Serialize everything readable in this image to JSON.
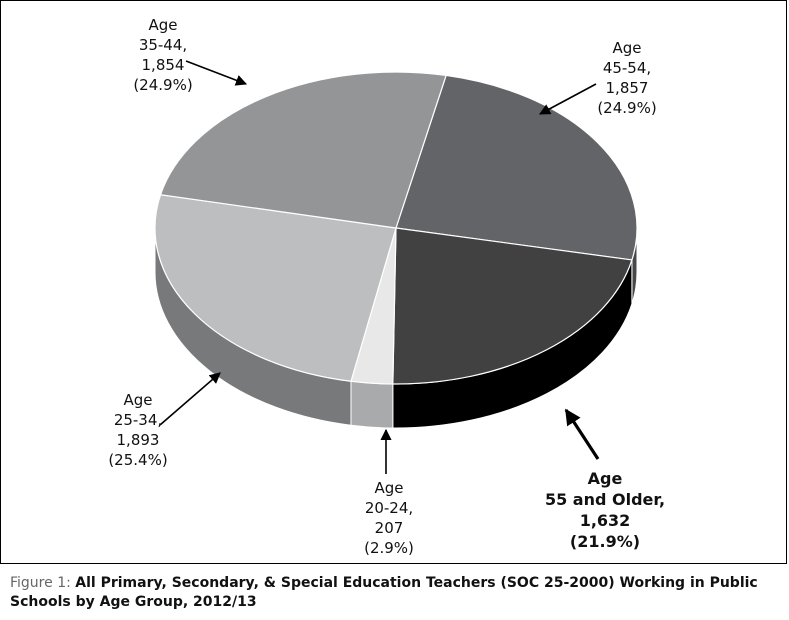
{
  "chart_data": {
    "type": "pie",
    "title": "",
    "slices": [
      {
        "label_lines": [
          "Age",
          "45-54,",
          "1,857",
          "(24.9%)"
        ],
        "name": "Age 45-54",
        "value": 1857,
        "percent": 24.9,
        "color": "#636467",
        "side_color": "#47484a"
      },
      {
        "label_lines": [
          "Age",
          "55 and Older,",
          "1,632",
          "(21.9%)"
        ],
        "name": "Age 55 and Older",
        "value": 1632,
        "percent": 21.9,
        "color": "#414141",
        "side_color": "#000000"
      },
      {
        "label_lines": [
          "Age",
          "20-24,",
          "207",
          "(2.9%)"
        ],
        "name": "Age 20-24",
        "value": 207,
        "percent": 2.9,
        "color": "#e8e8e8",
        "side_color": "#a9aaac"
      },
      {
        "label_lines": [
          "Age",
          "25-34,",
          "1,893",
          "(25.4%)"
        ],
        "name": "Age 25-34",
        "value": 1893,
        "percent": 25.4,
        "color": "#bdbebf",
        "side_color": "#78797b"
      },
      {
        "label_lines": [
          "Age",
          "35-44,",
          "1,854",
          "(24.9%)"
        ],
        "name": "Age 35-44",
        "value": 1854,
        "percent": 24.9,
        "color": "#949597",
        "side_color": "#6b6c6e"
      }
    ],
    "style": "3d-exploded-none",
    "legend": "none",
    "grid": false
  },
  "caption": {
    "prefix": "Figure 1: ",
    "text": "All Primary, Secondary, & Special Education Teachers (SOC 25-2000) Working in Public Schools by Age Group, 2012/13"
  }
}
